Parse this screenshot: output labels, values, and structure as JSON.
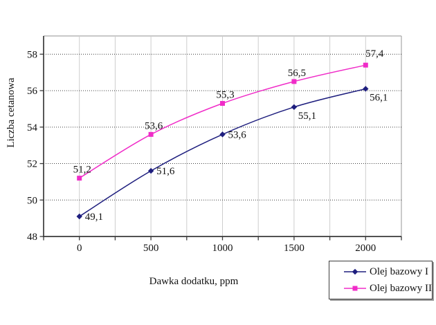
{
  "chart_data": {
    "type": "line",
    "title": "",
    "xlabel": "Dawka dodatku, ppm",
    "ylabel": "Liczba cetanowa",
    "x": [
      0,
      500,
      1000,
      1500,
      2000
    ],
    "x_tick_labels": [
      "0",
      "500",
      "1000",
      "1500",
      "2000"
    ],
    "ylim": [
      48,
      59
    ],
    "y_ticks": [
      48,
      50,
      52,
      54,
      56,
      58
    ],
    "y_tick_labels": [
      "48",
      "50",
      "52",
      "54",
      "56",
      "58"
    ],
    "grid": {
      "horizontal": true,
      "horizontal_style": "dotted",
      "horizontal_color": "#3d3d3d",
      "vertical": true,
      "vertical_style": "solid",
      "vertical_color": "#cdcdcd",
      "vertical_every_ppm": 250
    },
    "legend_position": "bottom-right-outside",
    "series": [
      {
        "name": "Olej bazowy I",
        "color": "#1e1e7e",
        "marker": "diamond",
        "line_style": "smooth",
        "values": [
          49.1,
          51.6,
          53.6,
          55.1,
          56.1
        ],
        "point_labels": [
          "49,1",
          "51,6",
          "53,6",
          "55,1",
          "56,1"
        ],
        "label_placements": [
          "right",
          "right",
          "right",
          "below-right",
          "below-right"
        ]
      },
      {
        "name": "Olej bazowy II",
        "color": "#f02cc8",
        "marker": "square",
        "line_style": "smooth",
        "values": [
          51.2,
          53.6,
          55.3,
          56.5,
          57.4
        ],
        "point_labels": [
          "51,2",
          "53,6",
          "55,3",
          "56,5",
          "57,4"
        ],
        "label_placements": [
          "above",
          "above",
          "above",
          "above",
          "above-right"
        ]
      }
    ]
  },
  "colors": {
    "axis": "#3a3a3a",
    "plot_border": "#a8a8a8",
    "text": "#111111",
    "background": "#ffffff"
  }
}
